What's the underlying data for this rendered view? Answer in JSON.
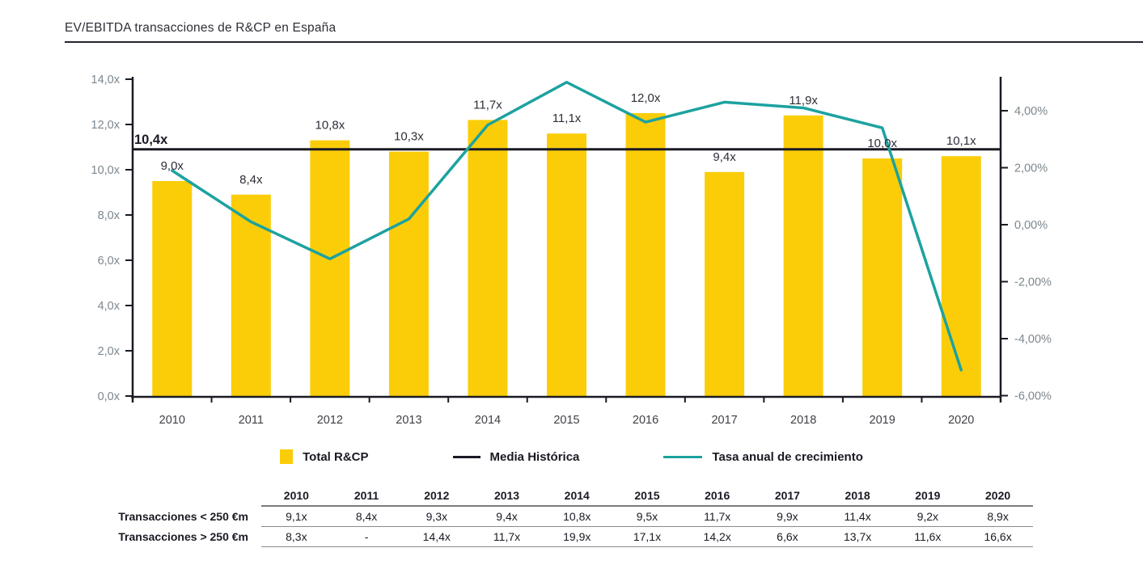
{
  "title": "EV/EBITDA transacciones de R&CP en España",
  "colors": {
    "bar_yellow": "#facd08",
    "growth_line_teal": "#1ca2a0",
    "media_line_black": "#1a1a24",
    "axis_label_gray": "#7c878e",
    "text_dark": "#2e2e38",
    "year_label": "#3f3f46",
    "table_rule_gray": "#8a8a8a"
  },
  "chart_data": {
    "type": "combo bar + line",
    "categories": [
      "2010",
      "2011",
      "2012",
      "2013",
      "2014",
      "2015",
      "2016",
      "2017",
      "2018",
      "2019",
      "2020"
    ],
    "series": [
      {
        "name": "Total R&CP",
        "type": "bar",
        "axis": "left",
        "values": [
          9.0,
          8.4,
          10.8,
          10.3,
          11.7,
          11.1,
          12.0,
          9.4,
          11.9,
          10.0,
          10.1
        ],
        "point_labels": [
          "9,0x",
          "8,4x",
          "10,8x",
          "10,3x",
          "11,7x",
          "11,1x",
          "12,0x",
          "9,4x",
          "11,9x",
          "10,0x",
          "10,1x"
        ]
      },
      {
        "name": "Media Histórica",
        "type": "constant-line",
        "axis": "left",
        "value": 10.4,
        "label": "10,4x"
      },
      {
        "name": "Tasa anual de crecimiento",
        "type": "line",
        "axis": "right",
        "values": [
          1.9,
          0.1,
          -1.2,
          0.2,
          3.5,
          5.0,
          3.6,
          4.3,
          4.1,
          3.4,
          -5.1
        ]
      }
    ],
    "left_axis": {
      "tick_labels": [
        "0,0x",
        "2,0x",
        "4,0x",
        "6,0x",
        "8,0x",
        "10,0x",
        "12,0x",
        "14,0x"
      ],
      "tick_values": [
        0,
        2,
        4,
        6,
        8,
        10,
        12,
        14
      ],
      "range": [
        0,
        14.1
      ],
      "unit": "x (EV/EBITDA)"
    },
    "right_axis": {
      "tick_labels": [
        "4,00%",
        "2,00%",
        "0,00%",
        "-2,00%",
        "-4,00%",
        "-6,00%"
      ],
      "tick_values": [
        4,
        2,
        0,
        -2,
        -4,
        -6
      ],
      "range": [
        -6,
        5.2
      ],
      "unit": "%"
    },
    "grid": false,
    "legend_position": "bottom"
  },
  "legend": {
    "items": [
      {
        "label": "Total R&CP",
        "swatch": "yellow-square"
      },
      {
        "label": "Media Histórica",
        "swatch": "black-line"
      },
      {
        "label": "Tasa anual de crecimiento",
        "swatch": "teal-line"
      }
    ]
  },
  "table": {
    "corner": "",
    "col_headers": [
      "2010",
      "2011",
      "2012",
      "2013",
      "2014",
      "2015",
      "2016",
      "2017",
      "2018",
      "2019",
      "2020"
    ],
    "rows": [
      {
        "label": "Transacciones < 250 €m",
        "values": [
          "9,1x",
          "8,4x",
          "9,3x",
          "9,4x",
          "10,8x",
          "9,5x",
          "11,7x",
          "9,9x",
          "11,4x",
          "9,2x",
          "8,9x"
        ]
      },
      {
        "label": "Transacciones > 250 €m",
        "values": [
          "8,3x",
          "-",
          "14,4x",
          "11,7x",
          "19,9x",
          "17,1x",
          "14,2x",
          "6,6x",
          "13,7x",
          "11,6x",
          "16,6x"
        ]
      }
    ]
  }
}
